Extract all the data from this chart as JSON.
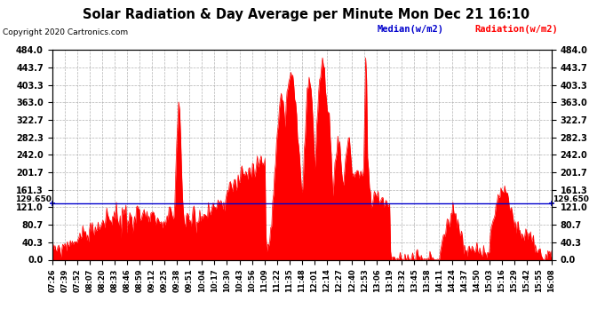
{
  "title": "Solar Radiation & Day Average per Minute Mon Dec 21 16:10",
  "copyright": "Copyright 2020 Cartronics.com",
  "median_label": "Median(w/m2)",
  "radiation_label": "Radiation(w/m2)",
  "median_value": 129.65,
  "ymin": 0.0,
  "ymax": 484.0,
  "yticks": [
    0.0,
    40.3,
    80.7,
    121.0,
    161.3,
    201.7,
    242.0,
    282.3,
    322.7,
    363.0,
    403.3,
    443.7,
    484.0
  ],
  "ytick_labels": [
    "0.0",
    "40.3",
    "80.7",
    "121.0",
    "161.3",
    "201.7",
    "242.0",
    "282.3",
    "322.7",
    "363.0",
    "403.3",
    "443.7",
    "484.0"
  ],
  "background_color": "#ffffff",
  "grid_color": "#aaaaaa",
  "bar_color": "#ff0000",
  "median_line_color": "#0000cc",
  "median_text_color": "#0000cc",
  "radiation_text_color": "#ff0000",
  "title_color": "#000000",
  "copyright_color": "#000000",
  "x_tick_labels": [
    "07:26",
    "07:39",
    "07:52",
    "08:07",
    "08:20",
    "08:33",
    "08:46",
    "08:59",
    "09:12",
    "09:25",
    "09:38",
    "09:51",
    "10:04",
    "10:17",
    "10:30",
    "10:43",
    "10:56",
    "11:09",
    "11:22",
    "11:35",
    "11:48",
    "12:01",
    "12:14",
    "12:27",
    "12:40",
    "12:53",
    "13:06",
    "13:19",
    "13:32",
    "13:45",
    "13:58",
    "14:11",
    "14:24",
    "14:37",
    "14:50",
    "15:03",
    "15:16",
    "15:29",
    "15:42",
    "15:55",
    "16:08"
  ],
  "fig_width": 6.9,
  "fig_height": 3.75,
  "dpi": 100
}
